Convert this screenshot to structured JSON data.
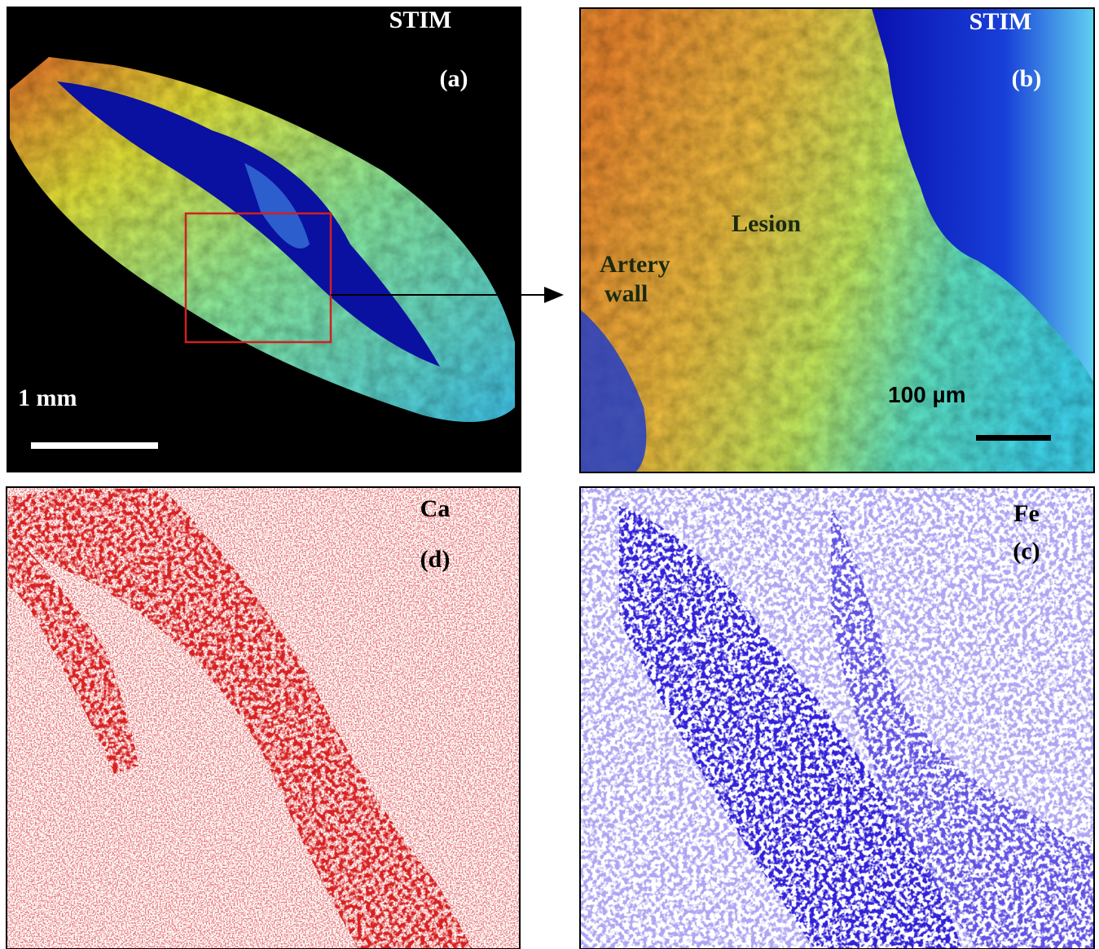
{
  "panels": {
    "a": {
      "modality": "STIM",
      "label": "(a)",
      "scale_bar": "1 mm"
    },
    "b": {
      "modality": "STIM",
      "label": "(b)",
      "annotations": [
        "Lesion",
        "Artery",
        "wall"
      ],
      "scale_bar": "100 µm"
    },
    "d": {
      "element": "Ca",
      "label": "(d)"
    },
    "c": {
      "element": "Fe",
      "label": "(c)"
    }
  }
}
